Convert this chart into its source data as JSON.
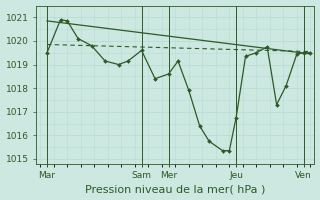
{
  "title": "",
  "xlabel": "Pression niveau de la mer( hPa )",
  "background_color": "#cce8e0",
  "line_color": "#2d5a27",
  "grid_color": "#b8ddd4",
  "ylim": [
    1014.8,
    1021.5
  ],
  "xlim": [
    -0.3,
    20.3
  ],
  "x_ticks_labels": [
    "Mar",
    "Sam",
    "Mer",
    "Jeu",
    "Ven"
  ],
  "x_ticks_pos": [
    0.5,
    7.5,
    9.5,
    14.5,
    19.5
  ],
  "x_vert_lines": [
    0.5,
    7.5,
    9.5,
    14.5,
    19.5
  ],
  "main_line_x": [
    0.5,
    1.5,
    2.0,
    2.8,
    3.8,
    4.8,
    5.8,
    6.5,
    7.5,
    8.5,
    9.5,
    10.2,
    11.0,
    11.8,
    12.5,
    13.5,
    14.0,
    14.5,
    15.2,
    16.0,
    16.8,
    17.5,
    18.2,
    19.0,
    19.5,
    20.0
  ],
  "main_line_y": [
    1019.5,
    1020.9,
    1020.85,
    1020.1,
    1019.8,
    1019.15,
    1019.0,
    1019.15,
    1019.6,
    1018.4,
    1018.6,
    1019.15,
    1017.9,
    1016.4,
    1015.75,
    1015.35,
    1015.35,
    1016.75,
    1019.35,
    1019.5,
    1019.75,
    1017.3,
    1018.1,
    1019.45,
    1019.5,
    1019.5
  ],
  "trend_line_x": [
    0.5,
    20.0
  ],
  "trend_line_y": [
    1020.85,
    1019.45
  ],
  "avg_line_x": [
    0.5,
    20.0
  ],
  "avg_line_y": [
    1019.85,
    1019.55
  ],
  "xlabel_fontsize": 8,
  "tick_fontsize": 6.5
}
